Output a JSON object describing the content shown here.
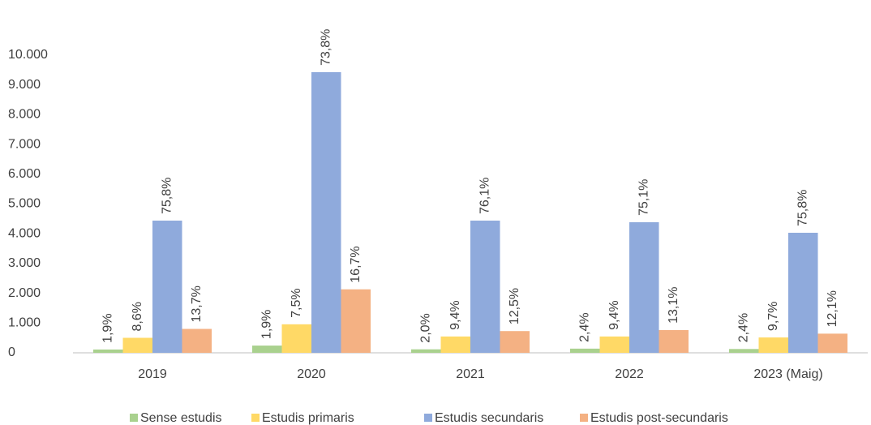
{
  "chart_data": {
    "type": "bar",
    "categories": [
      "2019",
      "2020",
      "2021",
      "2022",
      "2023 (Maig)"
    ],
    "series": [
      {
        "name": "Sense estudis",
        "color": "#a9d18e",
        "values": [
          111,
          243,
          117,
          140,
          128
        ],
        "data_labels": [
          "1,9%",
          "1,9%",
          "2,0%",
          "2,4%",
          "2,4%"
        ]
      },
      {
        "name": "Estudis primaris",
        "color": "#ffd966",
        "values": [
          504,
          958,
          549,
          549,
          516
        ],
        "data_labels": [
          "8,6%",
          "7,5%",
          "9,4%",
          "9,4%",
          "9,7%"
        ]
      },
      {
        "name": "Estudis secundaris",
        "color": "#8faadc",
        "values": [
          4441,
          9428,
          4441,
          4387,
          4033
        ],
        "data_labels": [
          "75,8%",
          "73,8%",
          "76,1%",
          "75,1%",
          "75,8%"
        ]
      },
      {
        "name": "Estudis post-secundaris",
        "color": "#f4b183",
        "values": [
          803,
          2133,
          730,
          765,
          644
        ],
        "data_labels": [
          "13,7%",
          "16,7%",
          "12,5%",
          "13,1%",
          "12,1%"
        ]
      }
    ],
    "ylim": [
      0,
      10000
    ],
    "yticks": [
      0,
      {
        "value": 1000,
        "label": "1.000"
      },
      {
        "value": 2000,
        "label": "2.000"
      },
      {
        "value": 3000,
        "label": "3.000"
      },
      {
        "value": 4000,
        "label": "4.000"
      },
      {
        "value": 5000,
        "label": "5.000"
      },
      {
        "value": 6000,
        "label": "6.000"
      },
      {
        "value": 7000,
        "label": "7.000"
      },
      {
        "value": 8000,
        "label": "8.000"
      },
      {
        "value": 9000,
        "label": "9.000"
      },
      {
        "value": 10000,
        "label": "10.000"
      }
    ],
    "grid": false,
    "legend": "bottom"
  }
}
